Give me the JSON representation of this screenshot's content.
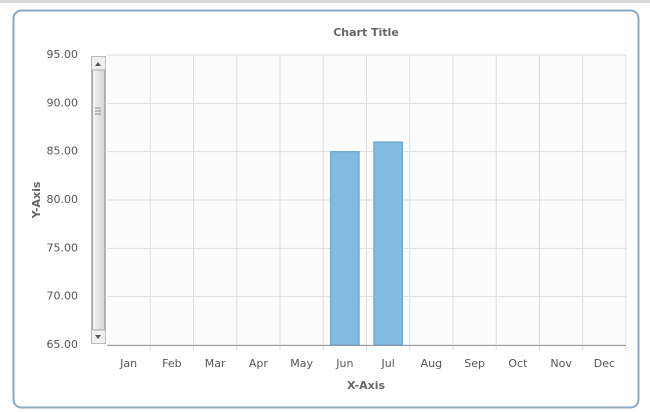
{
  "chart_data": {
    "type": "bar",
    "title": "Chart Title",
    "x_label": "X-Axis",
    "y_label": "Y-Axis",
    "categories": [
      "Jan",
      "Feb",
      "Mar",
      "Apr",
      "May",
      "Jun",
      "Jul",
      "Aug",
      "Sep",
      "Oct",
      "Nov",
      "Dec"
    ],
    "values": [
      null,
      null,
      null,
      null,
      null,
      85,
      86,
      null,
      null,
      null,
      null,
      null
    ],
    "color": "#82bbe2",
    "ylim": [
      65,
      95
    ],
    "yticks": [
      {
        "value": 65,
        "label": "65.00"
      },
      {
        "value": 70,
        "label": "70.00"
      },
      {
        "value": 75,
        "label": "75.00"
      },
      {
        "value": 80,
        "label": "80.00"
      },
      {
        "value": 85,
        "label": "85.00"
      },
      {
        "value": 90,
        "label": "90.00"
      },
      {
        "value": 95,
        "label": "95.00"
      }
    ],
    "grid": true
  }
}
